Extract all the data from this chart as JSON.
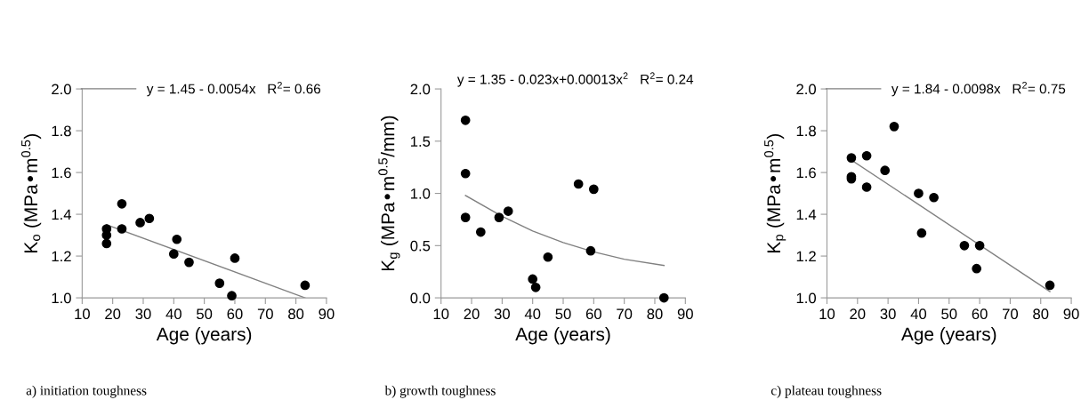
{
  "chart_data": [
    {
      "type": "scatter",
      "xlabel": "Age (years)",
      "ylabel": "K$_{o}$ (MPa•m$^{0.5}$)",
      "xlim": [
        10,
        90
      ],
      "ylim": [
        1.0,
        2.0
      ],
      "xticks": [
        10,
        20,
        30,
        40,
        50,
        60,
        70,
        80,
        90
      ],
      "yticks": [
        {
          "value": 1,
          "label": "1.0"
        },
        1.2,
        1.4,
        1.6,
        1.8,
        {
          "value": 2,
          "label": "2.0"
        }
      ],
      "grid": false,
      "legend": "top right",
      "series": [
        {
          "marker": "circle",
          "color": "#000000",
          "x": [
            18,
            18,
            18,
            23,
            23,
            29,
            32,
            40,
            41,
            45,
            55,
            59,
            60,
            83
          ],
          "values": [
            1.33,
            1.3,
            1.26,
            1.45,
            1.33,
            1.36,
            1.38,
            1.21,
            1.28,
            1.17,
            1.07,
            1.01,
            1.19,
            1.06
          ]
        },
        {
          "type": "line",
          "name": "y = 1.45 - 0.0054x   R$^{2}$= 0.66",
          "color": "#808080",
          "x": [
            18,
            83
          ],
          "values": [
            1.35,
            1.0
          ]
        }
      ],
      "annotations": [
        "a) initiation toughness"
      ]
    },
    {
      "type": "scatter",
      "xlabel": "Age (years)",
      "ylabel": "K$_{g}$ (MPa•m$^{0.5}$/mm)",
      "xlim": [
        10,
        90
      ],
      "ylim": [
        0.0,
        2.0
      ],
      "xticks": [
        10,
        20,
        30,
        40,
        50,
        60,
        70,
        80,
        90
      ],
      "yticks": [
        {
          "value": 0,
          "label": "0.0"
        },
        0.5,
        {
          "value": 1,
          "label": "1.0"
        },
        1.5,
        {
          "value": 2,
          "label": "2.0"
        }
      ],
      "grid": false,
      "series": [
        {
          "marker": "circle",
          "color": "#000000",
          "x": [
            18,
            18,
            18,
            23,
            29,
            32,
            40,
            41,
            45,
            55,
            59,
            60,
            83
          ],
          "values": [
            1.7,
            1.19,
            0.77,
            0.63,
            0.77,
            0.83,
            0.18,
            0.1,
            0.39,
            1.09,
            0.45,
            1.04,
            0.0
          ]
        },
        {
          "type": "line",
          "color": "#808080",
          "x": [
            18,
            30,
            40,
            50,
            60,
            70,
            83
          ],
          "values": [
            0.98,
            0.78,
            0.64,
            0.53,
            0.44,
            0.37,
            0.31
          ]
        }
      ],
      "annotations": [
        "y = 1.35 - 0.023x+0.00013x$^{2}$   R$^{2}$= 0.24",
        "b) growth toughness"
      ]
    },
    {
      "type": "scatter",
      "xlabel": "Age (years)",
      "ylabel": "K$_{p}$ (MPa•m$^{0.5}$)",
      "xlim": [
        10,
        90
      ],
      "ylim": [
        1.0,
        2.0
      ],
      "xticks": [
        10,
        20,
        30,
        40,
        50,
        60,
        70,
        80,
        90
      ],
      "yticks": [
        {
          "value": 1,
          "label": "1.0"
        },
        1.2,
        1.4,
        1.6,
        1.8,
        {
          "value": 2,
          "label": "2.0"
        }
      ],
      "grid": false,
      "legend": "top right",
      "series": [
        {
          "marker": "circle",
          "color": "#000000",
          "x": [
            18,
            18,
            18,
            23,
            23,
            29,
            32,
            40,
            41,
            45,
            55,
            59,
            60,
            83
          ],
          "values": [
            1.67,
            1.58,
            1.57,
            1.68,
            1.53,
            1.61,
            1.82,
            1.5,
            1.31,
            1.48,
            1.25,
            1.14,
            1.25,
            1.06
          ]
        },
        {
          "type": "line",
          "name": "y = 1.84 - 0.0098x   R$^{2}$= 0.75",
          "color": "#808080",
          "x": [
            18,
            83
          ],
          "values": [
            1.66,
            1.03
          ]
        }
      ],
      "annotations": [
        "c) plateau toughness"
      ]
    }
  ]
}
